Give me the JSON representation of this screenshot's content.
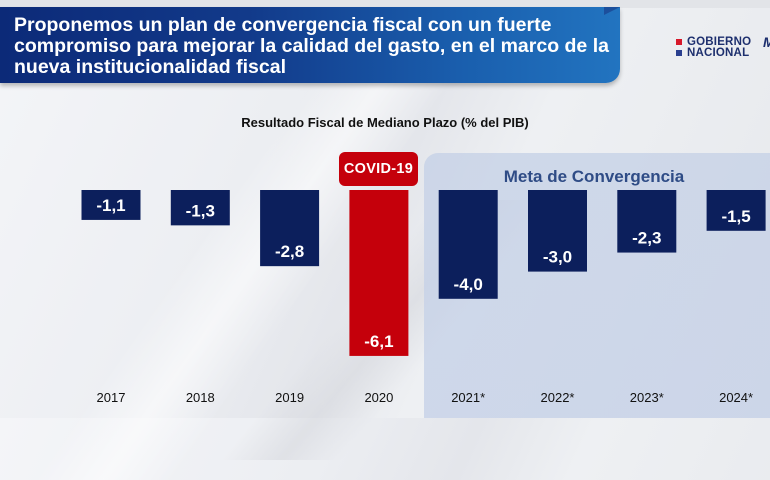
{
  "header": {
    "title": "Proponemos un plan de convergencia fiscal con un fuerte compromiso para mejorar la calidad del gasto, en el marco de la nueva institucionalidad fiscal",
    "logo_line1": "GOBIERNO",
    "logo_line2": "NACIONAL",
    "logo_square_colors": [
      "#d7182a",
      "#2a3f8f"
    ],
    "logo_mark": "M"
  },
  "colors": {
    "bar_default": "#0c1f5c",
    "bar_highlight": "#c5000b",
    "banner": "#123a8a",
    "meta_text": "#2f4c86"
  },
  "annotations": {
    "covid": "COVID-19",
    "meta": "Meta de Convergencia"
  },
  "chart_data": {
    "type": "bar",
    "title": "Resultado Fiscal de Mediano Plazo (% del PIB)",
    "xlabel": "",
    "ylabel": "% del PIB",
    "categories": [
      "2017",
      "2018",
      "2019",
      "2020",
      "2021*",
      "2022*",
      "2023*",
      "2024*"
    ],
    "values": [
      -1.1,
      -1.3,
      -2.8,
      -6.1,
      -4.0,
      -3.0,
      -2.3,
      -1.5
    ],
    "value_labels": [
      "-1,1",
      "-1,3",
      "-2,8",
      "-6,1",
      "-4,0",
      "-3,0",
      "-2,3",
      "-1,5"
    ],
    "highlight_index": 3,
    "projected_indices": [
      4,
      5,
      6,
      7
    ],
    "ylim": [
      -6.1,
      0
    ],
    "grid": false,
    "legend": "none"
  }
}
